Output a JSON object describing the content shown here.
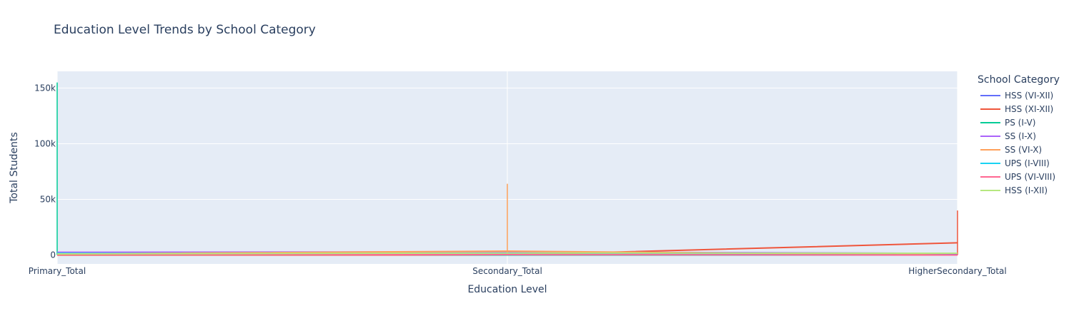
{
  "chart_data": {
    "type": "line",
    "title": "Education Level Trends by School Category",
    "xlabel": "Education Level",
    "ylabel": "Total Students",
    "categories": [
      "Primary_Total",
      "Secondary_Total",
      "HigherSecondary_Total"
    ],
    "ylim": [
      -8000,
      165000
    ],
    "yticks": [
      0,
      50000,
      100000,
      150000
    ],
    "ytick_labels": [
      "0",
      "50k",
      "100k",
      "150k"
    ],
    "grid": true,
    "legend_title": "School Category",
    "legend_position": "right",
    "series": [
      {
        "name": "HSS (VI-XII)",
        "color": "#636efa",
        "values": [
          800,
          1500,
          1000
        ],
        "spike": null
      },
      {
        "name": "HSS (XI-XII)",
        "color": "#ef553b",
        "values": [
          0,
          0,
          11000
        ],
        "spike": {
          "x": 2,
          "y": 40000
        }
      },
      {
        "name": "PS (I-V)",
        "color": "#00cc96",
        "values": [
          1200,
          0,
          0
        ],
        "spike": {
          "x": 0,
          "y": 155000
        }
      },
      {
        "name": "SS (I-X)",
        "color": "#ab63fa",
        "values": [
          2500,
          2800,
          1500
        ],
        "spike": null
      },
      {
        "name": "SS (VI-X)",
        "color": "#ffa15a",
        "values": [
          1000,
          3500,
          0
        ],
        "spike": {
          "x": 1,
          "y": 64000
        }
      },
      {
        "name": "UPS (I-VIII)",
        "color": "#19d3f3",
        "values": [
          1500,
          500,
          0
        ],
        "spike": null
      },
      {
        "name": "UPS (VI-VIII)",
        "color": "#ff6692",
        "values": [
          500,
          300,
          0
        ],
        "spike": null
      },
      {
        "name": "HSS (I-XII)",
        "color": "#b6e880",
        "values": [
          1000,
          1800,
          1600
        ],
        "spike": null
      }
    ]
  }
}
